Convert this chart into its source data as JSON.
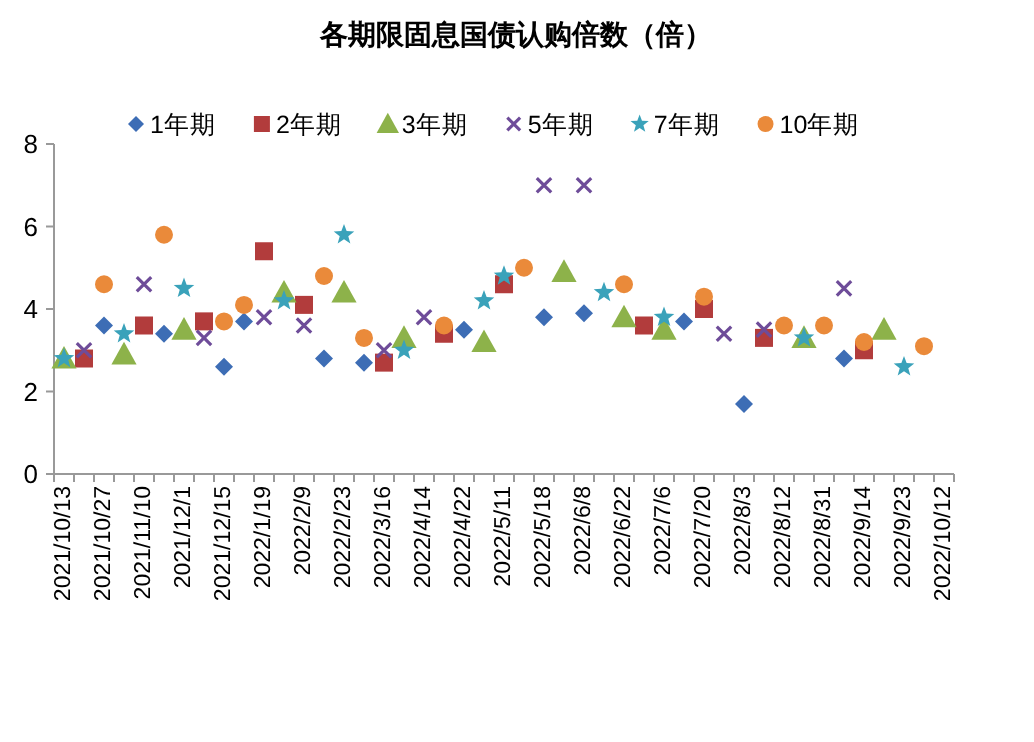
{
  "chart_data": {
    "type": "scatter",
    "title": "各期限固息国债认购倍数（倍）",
    "categories": [
      "2021/10/13",
      null,
      "2021/10/27",
      null,
      "2021/11/10",
      null,
      "2021/12/1",
      null,
      "2021/12/15",
      null,
      "2022/1/19",
      null,
      "2022/2/9",
      null,
      "2022/2/23",
      null,
      "2022/3/16",
      null,
      "2022/4/14",
      null,
      "2022/4/22",
      null,
      "2022/5/11",
      null,
      "2022/5/18",
      null,
      "2022/6/8",
      null,
      "2022/6/22",
      null,
      "2022/7/6",
      null,
      "2022/7/20",
      null,
      "2022/8/3",
      null,
      "2022/8/12",
      null,
      "2022/8/31",
      null,
      "2022/9/14",
      null,
      "2022/9/23",
      null,
      "2022/10/12"
    ],
    "ylim": [
      0,
      8
    ],
    "yticks": [
      0,
      2,
      4,
      6,
      8
    ],
    "grid": false,
    "legend": "top",
    "series": [
      {
        "name": "1年期",
        "color": "#3d6db5",
        "marker": "diamond",
        "values": [
          null,
          null,
          3.6,
          null,
          null,
          3.4,
          null,
          null,
          2.6,
          3.7,
          null,
          null,
          null,
          2.8,
          null,
          2.7,
          null,
          null,
          null,
          null,
          3.5,
          null,
          null,
          null,
          3.8,
          null,
          3.9,
          null,
          null,
          null,
          null,
          3.7,
          null,
          null,
          1.7,
          null,
          null,
          null,
          null,
          2.8,
          null,
          null,
          null,
          null,
          null
        ]
      },
      {
        "name": "2年期",
        "color": "#b23c3c",
        "marker": "square",
        "values": [
          null,
          2.8,
          null,
          null,
          3.6,
          null,
          null,
          3.7,
          null,
          null,
          5.4,
          null,
          4.1,
          null,
          null,
          null,
          2.7,
          null,
          null,
          3.4,
          null,
          null,
          4.6,
          null,
          null,
          null,
          null,
          null,
          null,
          3.6,
          null,
          null,
          4.0,
          null,
          null,
          3.3,
          null,
          null,
          null,
          null,
          3.0,
          null,
          null,
          null,
          null
        ]
      },
      {
        "name": "3年期",
        "color": "#8db24a",
        "marker": "triangle",
        "values": [
          2.8,
          null,
          null,
          2.9,
          null,
          null,
          3.5,
          null,
          null,
          null,
          null,
          4.4,
          null,
          null,
          4.4,
          null,
          null,
          3.3,
          null,
          null,
          null,
          3.2,
          null,
          null,
          null,
          4.9,
          null,
          null,
          3.8,
          null,
          3.5,
          null,
          null,
          null,
          null,
          null,
          null,
          3.3,
          null,
          null,
          null,
          3.5,
          null,
          null,
          null
        ]
      },
      {
        "name": "5年期",
        "color": "#6e4c99",
        "marker": "cross",
        "values": [
          null,
          3.0,
          null,
          null,
          4.6,
          null,
          null,
          3.3,
          null,
          null,
          3.8,
          null,
          3.6,
          null,
          null,
          null,
          3.0,
          null,
          3.8,
          null,
          null,
          null,
          null,
          null,
          7.0,
          null,
          7.0,
          null,
          null,
          null,
          null,
          null,
          null,
          3.4,
          null,
          3.5,
          null,
          null,
          null,
          4.5,
          null,
          null,
          null,
          null,
          null
        ]
      },
      {
        "name": "7年期",
        "color": "#3aa2ba",
        "marker": "star",
        "values": [
          2.8,
          null,
          null,
          3.4,
          null,
          null,
          4.5,
          null,
          null,
          null,
          null,
          4.2,
          null,
          null,
          5.8,
          null,
          null,
          3.0,
          null,
          null,
          null,
          4.2,
          4.8,
          null,
          null,
          null,
          null,
          4.4,
          null,
          null,
          3.8,
          null,
          null,
          null,
          null,
          null,
          null,
          3.3,
          null,
          null,
          null,
          null,
          2.6,
          null,
          null
        ]
      },
      {
        "name": "10年期",
        "color": "#ea8a3a",
        "marker": "circle",
        "values": [
          null,
          null,
          4.6,
          null,
          null,
          5.8,
          null,
          null,
          3.7,
          4.1,
          null,
          null,
          null,
          4.8,
          null,
          3.3,
          null,
          null,
          null,
          3.6,
          null,
          null,
          null,
          5.0,
          null,
          null,
          null,
          null,
          4.6,
          null,
          null,
          null,
          4.3,
          null,
          null,
          null,
          3.6,
          null,
          3.6,
          null,
          3.2,
          null,
          null,
          3.1,
          null
        ]
      }
    ]
  }
}
